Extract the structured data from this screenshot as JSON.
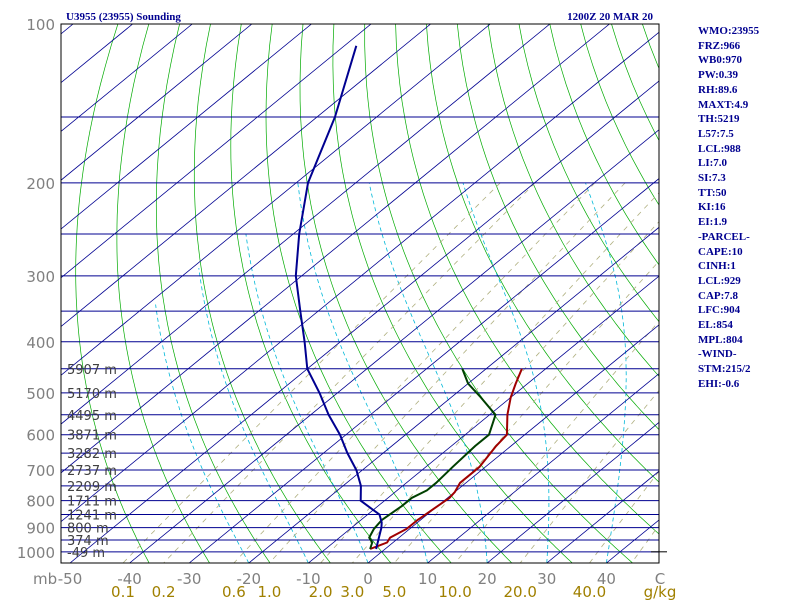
{
  "chart_data": {
    "type": "skew-t log-p sounding",
    "title_left": "U3955 (23955) Sounding",
    "title_right": "1200Z 20 MAR 20",
    "pressure_unit_label": "mb",
    "pressure_ticks": [
      100,
      200,
      300,
      400,
      500,
      600,
      700,
      800,
      900,
      1000
    ],
    "temperature_unit_label": "C",
    "temperature_ticks": [
      -50,
      -40,
      -30,
      -20,
      -10,
      0,
      10,
      20,
      30,
      40
    ],
    "mixing_ratio_unit_label": "g/kg",
    "mixing_ratio_ticks": [
      "0.1",
      "0.2",
      "0.6",
      "1.0",
      "2.0",
      "3.0",
      "5.0",
      "10.0",
      "20.0",
      "40.0"
    ],
    "height_labels": [
      {
        "text": "5907 m",
        "p": 450
      },
      {
        "text": "5170 m",
        "p": 500
      },
      {
        "text": "4495 m",
        "p": 550
      },
      {
        "text": "3871 m",
        "p": 600
      },
      {
        "text": "3282 m",
        "p": 650
      },
      {
        "text": "2737 m",
        "p": 700
      },
      {
        "text": "2209 m",
        "p": 750
      },
      {
        "text": "1711 m",
        "p": 800
      },
      {
        "text": "1241 m",
        "p": 850
      },
      {
        "text": "800 m",
        "p": 900
      },
      {
        "text": "374 m",
        "p": 950
      },
      {
        "text": "-49 m",
        "p": 1000
      }
    ],
    "series": [
      {
        "name": "temperature",
        "color": "#a00000",
        "points": [
          [
            -2.5,
            988
          ],
          [
            -1,
            960
          ],
          [
            -1.5,
            940
          ],
          [
            -0.5,
            905
          ],
          [
            -0.5,
            870
          ],
          [
            0,
            820
          ],
          [
            0.3,
            790
          ],
          [
            0,
            770
          ],
          [
            -1,
            740
          ],
          [
            -1,
            690
          ],
          [
            -2.5,
            630
          ],
          [
            -3,
            600
          ],
          [
            -7,
            550
          ],
          [
            -10,
            510
          ],
          [
            -12,
            480
          ],
          [
            -14,
            450
          ]
        ]
      },
      {
        "name": "dewpoint",
        "color": "#004000",
        "points": [
          [
            -2.5,
            988
          ],
          [
            -3.5,
            960
          ],
          [
            -5,
            940
          ],
          [
            -6,
            905
          ],
          [
            -6.5,
            870
          ],
          [
            -6,
            820
          ],
          [
            -6,
            790
          ],
          [
            -5,
            765
          ],
          [
            -5,
            740
          ],
          [
            -5.5,
            690
          ],
          [
            -6,
            630
          ],
          [
            -6,
            600
          ],
          [
            -9,
            550
          ],
          [
            -15,
            510
          ],
          [
            -20,
            480
          ],
          [
            -24,
            450
          ]
        ]
      },
      {
        "name": "parcel",
        "color": "#000090",
        "points": [
          [
            -1.5,
            988
          ],
          [
            -3.8,
            929
          ],
          [
            -5,
            900
          ],
          [
            -6,
            880
          ],
          [
            -8,
            850
          ],
          [
            -14,
            800
          ],
          [
            -17,
            750
          ],
          [
            -21,
            700
          ],
          [
            -26,
            650
          ],
          [
            -31,
            600
          ],
          [
            -37,
            550
          ],
          [
            -43,
            500
          ],
          [
            -50,
            450
          ],
          [
            -56,
            400
          ],
          [
            -63,
            350
          ],
          [
            -71,
            300
          ],
          [
            -79,
            250
          ],
          [
            -88,
            200
          ],
          [
            -97,
            150
          ],
          [
            -108,
            110
          ]
        ]
      }
    ],
    "indices": [
      "WMO:23955",
      "FRZ:966",
      "WB0:970",
      "PW:0.39",
      "RH:89.6",
      "MAXT:4.9",
      "TH:5219",
      "L57:7.5",
      "LCL:988",
      "LI:7.0",
      "SI:7.3",
      "TT:50",
      "KI:16",
      "EI:1.9",
      "-PARCEL-",
      "CAPE:10",
      "CINH:1",
      "LCL:929",
      "CAP:7.8",
      "LFC:904",
      "EL:854",
      "MPL:804",
      "-WIND-",
      "STM:215/2",
      "EHI:-0.6"
    ],
    "colors": {
      "isobar": "#000090",
      "isotherm": "#000090",
      "dry_adiabat": "#00aa00",
      "moist_adiabat": "#00b8d8",
      "mixing_ratio": "#b0b080",
      "label_gray": "#808080",
      "label_olive": "#a08000",
      "index_text": "#000090"
    }
  }
}
